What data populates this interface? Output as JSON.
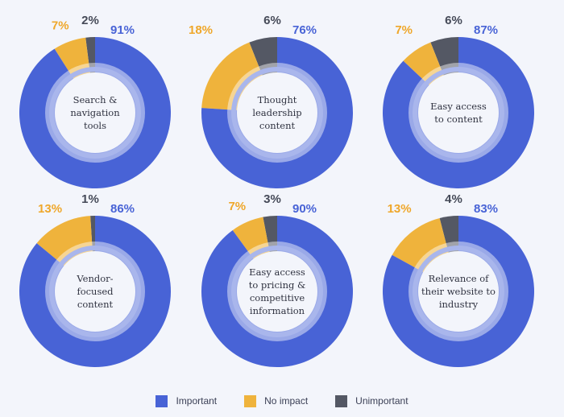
{
  "colors": {
    "important": "#4863d6",
    "no_impact": "#efb33c",
    "unimportant": "#545864",
    "inner_ring": "#a9b6ec",
    "center": "#f3f5fb"
  },
  "legend": {
    "important": "Important",
    "no_impact": "No impact",
    "unimportant": "Unimportant"
  },
  "chart_data": [
    {
      "type": "pie",
      "title": "Search & navigation tools",
      "title_lines": [
        "Search &",
        "navigation",
        "tools"
      ],
      "categories": [
        "Important",
        "No impact",
        "Unimportant"
      ],
      "values": [
        91,
        7,
        2
      ],
      "labels": [
        "91%",
        "7%",
        "2%"
      ]
    },
    {
      "type": "pie",
      "title": "Thought leadership content",
      "title_lines": [
        "Thought",
        "leadership",
        "content"
      ],
      "categories": [
        "Important",
        "No impact",
        "Unimportant"
      ],
      "values": [
        76,
        18,
        6
      ],
      "labels": [
        "76%",
        "18%",
        "6%"
      ]
    },
    {
      "type": "pie",
      "title": "Easy access to content",
      "title_lines": [
        "Easy access",
        "to content"
      ],
      "categories": [
        "Important",
        "No impact",
        "Unimportant"
      ],
      "values": [
        87,
        7,
        6
      ],
      "labels": [
        "87%",
        "7%",
        "6%"
      ]
    },
    {
      "type": "pie",
      "title": "Vendor-focused content",
      "title_lines": [
        "Vendor-",
        "focused",
        "content"
      ],
      "categories": [
        "Important",
        "No impact",
        "Unimportant"
      ],
      "values": [
        86,
        13,
        1
      ],
      "labels": [
        "86%",
        "13%",
        "1%"
      ]
    },
    {
      "type": "pie",
      "title": "Easy access to pricing & competitive information",
      "title_lines": [
        "Easy access",
        "to pricing &",
        "competitive",
        "information"
      ],
      "categories": [
        "Important",
        "No impact",
        "Unimportant"
      ],
      "values": [
        90,
        7,
        3
      ],
      "labels": [
        "90%",
        "7%",
        "3%"
      ]
    },
    {
      "type": "pie",
      "title": "Relevance of their website to industry",
      "title_lines": [
        "Relevance of",
        "their website to",
        "industry"
      ],
      "categories": [
        "Important",
        "No impact",
        "Unimportant"
      ],
      "values": [
        83,
        13,
        4
      ],
      "labels": [
        "83%",
        "13%",
        "4%"
      ]
    }
  ]
}
